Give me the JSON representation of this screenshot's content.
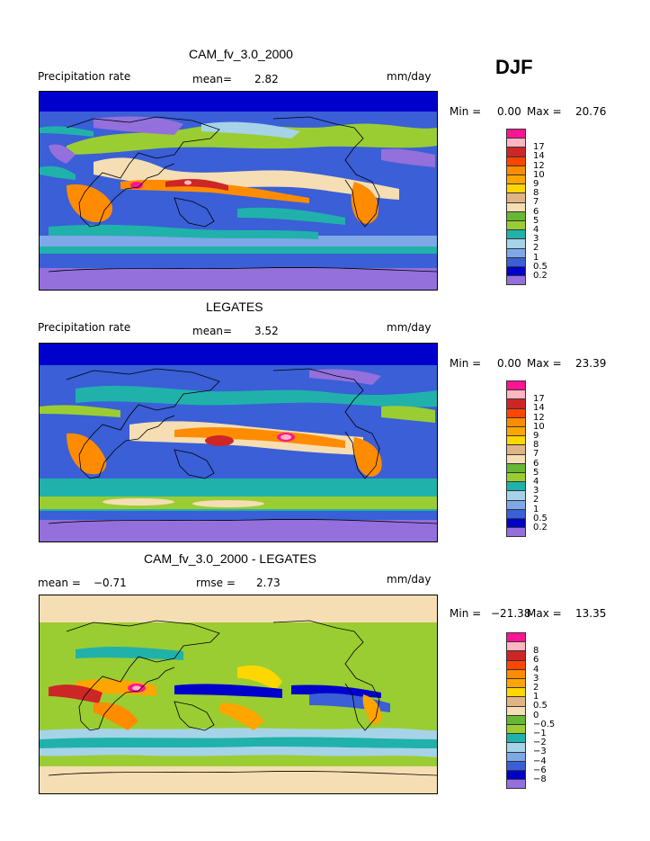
{
  "season": "DJF",
  "colors": [
    "#9370db",
    "#0000cd",
    "#3a5fd6",
    "#7fa8e8",
    "#a6d3e8",
    "#20b2aa",
    "#9acd32",
    "#66b832",
    "#f5deb3",
    "#e0b487",
    "#ffd700",
    "#ffa500",
    "#ff8c00",
    "#ff4500",
    "#cd2626",
    "#ffb6c1",
    "#ff1493"
  ],
  "panels": [
    {
      "title": "CAM_fv_3.0_2000",
      "left_label": "Precipitation rate",
      "mid_label": "mean=",
      "mid_value": "2.82",
      "units": "mm/day",
      "min_label": "Min =",
      "min_value": "0.00",
      "max_label": "Max =",
      "max_value": "20.76",
      "levels": [
        "17",
        "14",
        "12",
        "10",
        "9",
        "8",
        "7",
        "6",
        "5",
        "4",
        "3",
        "2",
        "1",
        "0.5",
        "0.2"
      ]
    },
    {
      "title": "LEGATES",
      "left_label": "Precipitation rate",
      "mid_label": "mean=",
      "mid_value": "3.52",
      "units": "mm/day",
      "min_label": "Min =",
      "min_value": "0.00",
      "max_label": "Max =",
      "max_value": "23.39",
      "levels": [
        "17",
        "14",
        "12",
        "10",
        "9",
        "8",
        "7",
        "6",
        "5",
        "4",
        "3",
        "2",
        "1",
        "0.5",
        "0.2"
      ]
    },
    {
      "title": "CAM_fv_3.0_2000 - LEGATES",
      "left_label": "mean =",
      "left_value": "−0.71",
      "mid_label": "rmse =",
      "mid_value": "2.73",
      "units": "mm/day",
      "min_label": "Min =",
      "min_value": "−21.38",
      "max_label": "Max =",
      "max_value": "13.35",
      "levels": [
        "8",
        "6",
        "4",
        "3",
        "2",
        "1",
        "0.5",
        "0",
        "−0.5",
        "−1",
        "−2",
        "−3",
        "−4",
        "−6",
        "−8"
      ]
    }
  ],
  "chart_data": [
    {
      "type": "heatmap",
      "title": "CAM_fv_3.0_2000",
      "subtitle": "Precipitation rate",
      "units": "mm/day",
      "mean": 2.82,
      "min": 0.0,
      "max": 20.76,
      "contour_levels": [
        0.2,
        0.5,
        1,
        2,
        3,
        4,
        5,
        6,
        7,
        8,
        9,
        10,
        12,
        14,
        17
      ]
    },
    {
      "type": "heatmap",
      "title": "LEGATES",
      "subtitle": "Precipitation rate",
      "units": "mm/day",
      "mean": 3.52,
      "min": 0.0,
      "max": 23.39,
      "contour_levels": [
        0.2,
        0.5,
        1,
        2,
        3,
        4,
        5,
        6,
        7,
        8,
        9,
        10,
        12,
        14,
        17
      ]
    },
    {
      "type": "heatmap",
      "title": "CAM_fv_3.0_2000 - LEGATES",
      "units": "mm/day",
      "mean": -0.71,
      "rmse": 2.73,
      "min": -21.38,
      "max": 13.35,
      "contour_levels": [
        -8,
        -6,
        -4,
        -3,
        -2,
        -1,
        -0.5,
        0,
        0.5,
        1,
        2,
        3,
        4,
        6,
        8
      ]
    }
  ]
}
